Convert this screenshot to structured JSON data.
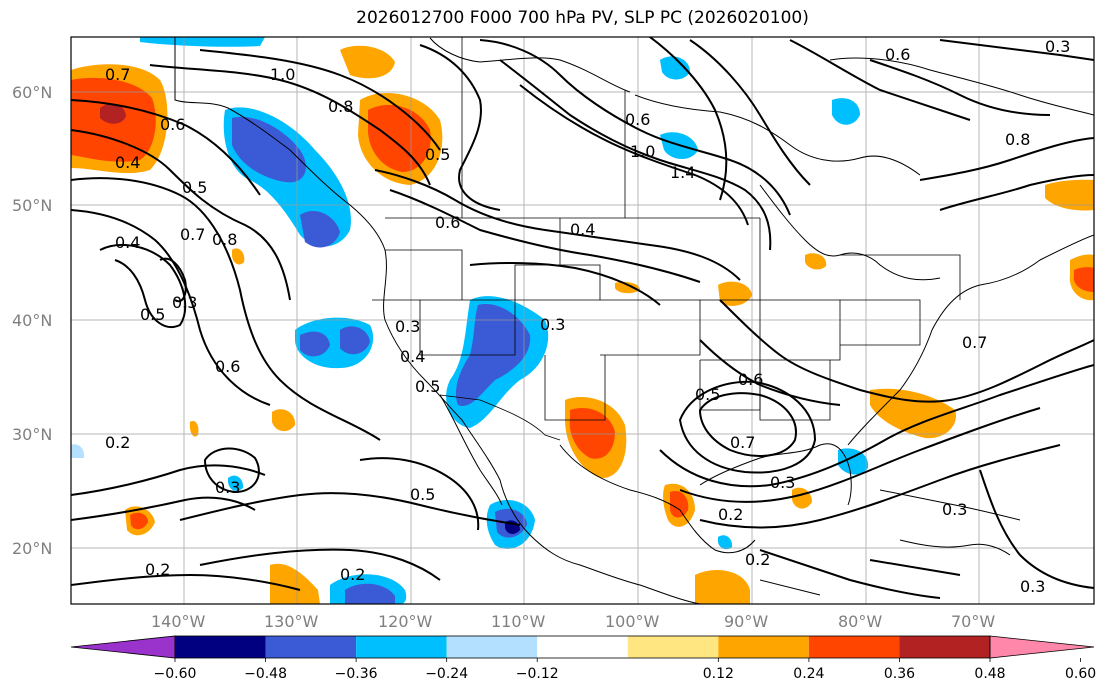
{
  "title": "2026012700 F000 700 hPa PV, SLP PC (2026020100)",
  "map": {
    "lat_labels": [
      "60°N",
      "50°N",
      "40°N",
      "30°N",
      "20°N"
    ],
    "lon_labels": [
      "140°W",
      "130°W",
      "120°W",
      "110°W",
      "100°W",
      "90°W",
      "80°W",
      "70°W"
    ],
    "contour_labels": [
      "0.7",
      "0.6",
      "0.4",
      "0.5",
      "1.0",
      "0.8",
      "0.5",
      "0.6",
      "1.0",
      "1.4",
      "0.4",
      "0.6",
      "0.4",
      "0.7",
      "0.8",
      "0.5",
      "0.3",
      "0.3",
      "0.4",
      "0.6",
      "0.3",
      "0.5",
      "0.6",
      "0.2",
      "0.3",
      "0.5",
      "0.7",
      "0.2",
      "0.2",
      "0.2",
      "0.3",
      "0.2",
      "0.3",
      "0.3",
      "0.7",
      "0.8",
      "0.6",
      "0.3",
      "0.5"
    ]
  },
  "colorbar": {
    "ticks": [
      "−0.60",
      "−0.48",
      "−0.36",
      "−0.24",
      "−0.12",
      "0.12",
      "0.24",
      "0.36",
      "0.48",
      "0.60"
    ],
    "colors": [
      "#9933cc",
      "#000080",
      "#3b5bd6",
      "#00bfff",
      "#b3e0ff",
      "#ffffff",
      "#ffe680",
      "#ffa500",
      "#ff4500",
      "#b22222",
      "#ff88aa"
    ]
  }
}
